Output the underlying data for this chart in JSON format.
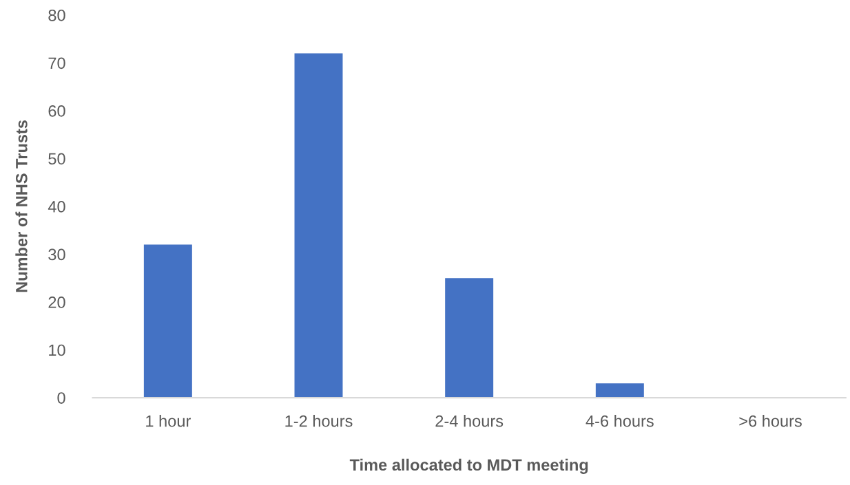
{
  "chart_data": {
    "type": "bar",
    "xlabel": "Time allocated to MDT meeting",
    "ylabel": "Number of NHS Trusts",
    "categories": [
      "1 hour",
      "1-2 hours",
      "2-4 hours",
      "4-6 hours",
      ">6 hours"
    ],
    "values": [
      32,
      72,
      25,
      3,
      0
    ],
    "color": "#4472c4",
    "ylim": [
      0,
      80
    ],
    "yticks": [
      0,
      10,
      20,
      30,
      40,
      50,
      60,
      70,
      80
    ],
    "grid": false,
    "legend": false
  }
}
